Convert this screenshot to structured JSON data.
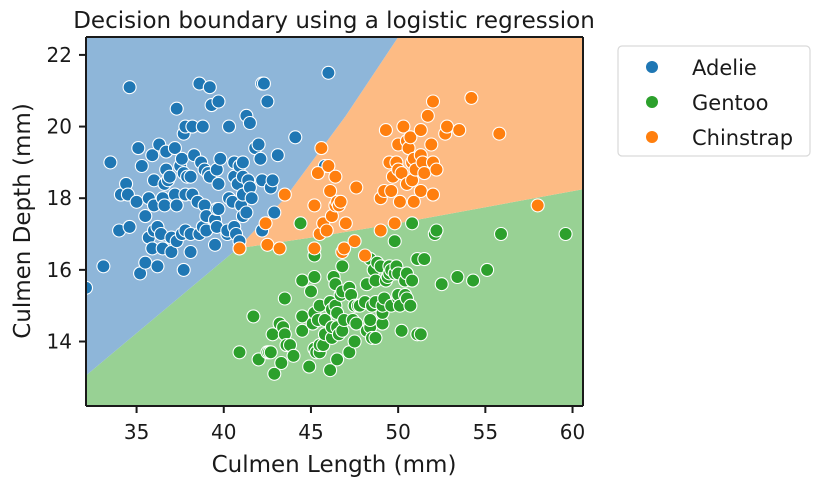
{
  "chart_data": {
    "type": "scatter",
    "title": "Decision boundary using a logistic regression",
    "xlabel": "Culmen Length (mm)",
    "ylabel": "Culmen Depth (mm)",
    "xlim": [
      32.1,
      60.6
    ],
    "ylim": [
      12.2,
      22.5
    ],
    "xticks": [
      35,
      40,
      45,
      50,
      55,
      60
    ],
    "yticks": [
      14,
      16,
      18,
      20,
      22
    ],
    "legend_position": "outside-right",
    "grid": false,
    "background_regions": [
      {
        "class": "Adelie",
        "color": "#8eb6d9"
      },
      {
        "class": "Chinstrap",
        "color": "#fdbb84"
      },
      {
        "class": "Gentoo",
        "color": "#98d194"
      }
    ],
    "boundaries": {
      "adelie_line": [
        [
          32.1,
          13.05
        ],
        [
          40.8,
          16.6
        ],
        [
          43.5,
          18.0
        ],
        [
          47.0,
          20.3
        ],
        [
          50.0,
          22.5
        ]
      ],
      "gentoo_line": [
        [
          40.8,
          16.6
        ],
        [
          45.0,
          16.9
        ],
        [
          50.0,
          17.3
        ],
        [
          55.0,
          17.75
        ],
        [
          60.6,
          18.25
        ]
      ]
    },
    "series": [
      {
        "name": "Adelie",
        "color": "#1f77b4",
        "points": [
          [
            32.1,
            15.5
          ],
          [
            33.1,
            16.1
          ],
          [
            33.5,
            19.0
          ],
          [
            34.0,
            17.1
          ],
          [
            34.1,
            18.1
          ],
          [
            34.4,
            18.4
          ],
          [
            34.5,
            18.1
          ],
          [
            34.6,
            21.1
          ],
          [
            34.6,
            17.2
          ],
          [
            35.0,
            17.9
          ],
          [
            35.1,
            19.4
          ],
          [
            35.2,
            15.9
          ],
          [
            35.3,
            18.9
          ],
          [
            35.5,
            16.2
          ],
          [
            35.5,
            17.5
          ],
          [
            35.7,
            16.9
          ],
          [
            35.7,
            18.0
          ],
          [
            35.9,
            16.6
          ],
          [
            35.9,
            19.2
          ],
          [
            36.0,
            17.1
          ],
          [
            36.0,
            17.8
          ],
          [
            36.0,
            18.5
          ],
          [
            36.2,
            16.1
          ],
          [
            36.2,
            17.2
          ],
          [
            36.3,
            19.5
          ],
          [
            36.4,
            17.0
          ],
          [
            36.5,
            16.6
          ],
          [
            36.5,
            18.0
          ],
          [
            36.6,
            17.8
          ],
          [
            36.6,
            18.4
          ],
          [
            36.7,
            18.8
          ],
          [
            36.7,
            19.3
          ],
          [
            36.8,
            18.5
          ],
          [
            36.9,
            18.6
          ],
          [
            37.0,
            16.5
          ],
          [
            37.0,
            16.9
          ],
          [
            37.2,
            18.1
          ],
          [
            37.2,
            19.4
          ],
          [
            37.3,
            16.8
          ],
          [
            37.3,
            17.8
          ],
          [
            37.3,
            20.5
          ],
          [
            37.5,
            18.9
          ],
          [
            37.6,
            17.0
          ],
          [
            37.6,
            19.1
          ],
          [
            37.7,
            16.0
          ],
          [
            37.7,
            18.7
          ],
          [
            37.7,
            19.8
          ],
          [
            37.8,
            17.1
          ],
          [
            37.8,
            18.1
          ],
          [
            37.8,
            20.0
          ],
          [
            37.9,
            18.6
          ],
          [
            38.1,
            16.5
          ],
          [
            38.1,
            17.0
          ],
          [
            38.1,
            18.6
          ],
          [
            38.2,
            18.1
          ],
          [
            38.2,
            20.0
          ],
          [
            38.3,
            19.2
          ],
          [
            38.5,
            17.9
          ],
          [
            38.6,
            17.0
          ],
          [
            38.6,
            21.2
          ],
          [
            38.7,
            19.0
          ],
          [
            38.8,
            17.2
          ],
          [
            38.8,
            20.0
          ],
          [
            38.9,
            17.8
          ],
          [
            38.9,
            18.8
          ],
          [
            39.0,
            17.1
          ],
          [
            39.0,
            17.5
          ],
          [
            39.1,
            18.7
          ],
          [
            39.2,
            18.6
          ],
          [
            39.2,
            21.1
          ],
          [
            39.3,
            20.6
          ],
          [
            39.5,
            16.7
          ],
          [
            39.5,
            17.4
          ],
          [
            39.6,
            17.2
          ],
          [
            39.6,
            17.7
          ],
          [
            39.6,
            18.8
          ],
          [
            39.7,
            17.7
          ],
          [
            39.7,
            18.4
          ],
          [
            39.8,
            19.1
          ],
          [
            39.7,
            20.7
          ],
          [
            40.2,
            17.0
          ],
          [
            40.2,
            17.1
          ],
          [
            40.3,
            18.0
          ],
          [
            40.3,
            20.0
          ],
          [
            40.5,
            17.9
          ],
          [
            40.6,
            17.2
          ],
          [
            40.6,
            18.6
          ],
          [
            40.6,
            19.0
          ],
          [
            40.7,
            17.0
          ],
          [
            40.8,
            18.4
          ],
          [
            40.9,
            16.6
          ],
          [
            40.9,
            16.8
          ],
          [
            40.9,
            18.9
          ],
          [
            41.0,
            17.8
          ],
          [
            41.1,
            17.5
          ],
          [
            41.1,
            18.1
          ],
          [
            41.1,
            18.6
          ],
          [
            41.1,
            19.0
          ],
          [
            41.3,
            17.6
          ],
          [
            41.3,
            20.3
          ],
          [
            41.4,
            18.5
          ],
          [
            41.5,
            18.3
          ],
          [
            41.5,
            20.1
          ],
          [
            41.6,
            18.0
          ],
          [
            41.8,
            19.4
          ],
          [
            42.0,
            19.5
          ],
          [
            42.1,
            19.1
          ],
          [
            42.2,
            17.1
          ],
          [
            42.2,
            18.5
          ],
          [
            42.2,
            21.2
          ],
          [
            42.3,
            21.2
          ],
          [
            42.5,
            20.7
          ],
          [
            42.7,
            18.3
          ],
          [
            42.8,
            18.5
          ],
          [
            42.9,
            17.6
          ],
          [
            43.1,
            19.2
          ],
          [
            44.1,
            19.7
          ],
          [
            45.8,
            18.9
          ],
          [
            46.0,
            21.5
          ]
        ]
      },
      {
        "name": "Gentoo",
        "color": "#2ca02c",
        "points": [
          [
            40.9,
            13.7
          ],
          [
            41.7,
            14.7
          ],
          [
            42.0,
            13.5
          ],
          [
            42.5,
            13.7
          ],
          [
            42.6,
            13.7
          ],
          [
            42.7,
            13.7
          ],
          [
            42.8,
            14.2
          ],
          [
            42.9,
            13.1
          ],
          [
            43.2,
            14.5
          ],
          [
            43.3,
            13.4
          ],
          [
            43.4,
            14.4
          ],
          [
            43.5,
            14.2
          ],
          [
            43.5,
            15.2
          ],
          [
            43.6,
            13.9
          ],
          [
            43.8,
            13.9
          ],
          [
            44.0,
            13.6
          ],
          [
            44.4,
            17.3
          ],
          [
            44.5,
            14.3
          ],
          [
            44.5,
            14.7
          ],
          [
            44.5,
            15.7
          ],
          [
            44.9,
            13.3
          ],
          [
            45.0,
            15.4
          ],
          [
            45.1,
            14.5
          ],
          [
            45.2,
            13.8
          ],
          [
            45.2,
            14.8
          ],
          [
            45.2,
            15.8
          ],
          [
            45.2,
            16.4
          ],
          [
            45.3,
            13.7
          ],
          [
            45.4,
            14.6
          ],
          [
            45.5,
            13.7
          ],
          [
            45.5,
            13.9
          ],
          [
            45.5,
            15.0
          ],
          [
            45.7,
            13.9
          ],
          [
            45.8,
            14.2
          ],
          [
            45.8,
            14.6
          ],
          [
            46.1,
            13.2
          ],
          [
            46.1,
            15.1
          ],
          [
            46.2,
            14.1
          ],
          [
            46.2,
            14.4
          ],
          [
            46.2,
            14.9
          ],
          [
            46.3,
            15.8
          ],
          [
            46.4,
            15.0
          ],
          [
            46.4,
            15.6
          ],
          [
            46.5,
            13.5
          ],
          [
            46.5,
            14.4
          ],
          [
            46.5,
            14.8
          ],
          [
            46.6,
            14.2
          ],
          [
            46.7,
            15.3
          ],
          [
            46.8,
            14.3
          ],
          [
            46.8,
            15.4
          ],
          [
            46.8,
            16.1
          ],
          [
            46.9,
            14.6
          ],
          [
            47.2,
            13.7
          ],
          [
            47.2,
            15.5
          ],
          [
            47.3,
            15.3
          ],
          [
            47.4,
            14.6
          ],
          [
            47.5,
            14.0
          ],
          [
            47.5,
            15.0
          ],
          [
            47.6,
            14.5
          ],
          [
            47.7,
            15.0
          ],
          [
            47.8,
            15.0
          ],
          [
            48.1,
            15.1
          ],
          [
            48.2,
            14.3
          ],
          [
            48.2,
            15.6
          ],
          [
            48.4,
            14.4
          ],
          [
            48.4,
            14.6
          ],
          [
            48.4,
            16.3
          ],
          [
            48.5,
            14.1
          ],
          [
            48.5,
            15.0
          ],
          [
            48.6,
            16.0
          ],
          [
            48.7,
            14.1
          ],
          [
            48.7,
            15.1
          ],
          [
            48.7,
            15.7
          ],
          [
            48.8,
            16.2
          ],
          [
            49.0,
            16.1
          ],
          [
            49.1,
            14.5
          ],
          [
            49.1,
            14.8
          ],
          [
            49.1,
            15.0
          ],
          [
            49.2,
            15.2
          ],
          [
            49.3,
            15.7
          ],
          [
            49.4,
            15.8
          ],
          [
            49.5,
            15.9
          ],
          [
            49.5,
            16.1
          ],
          [
            49.6,
            15.0
          ],
          [
            49.6,
            16.0
          ],
          [
            49.8,
            15.9
          ],
          [
            49.8,
            16.8
          ],
          [
            49.9,
            16.1
          ],
          [
            50.0,
            15.2
          ],
          [
            50.0,
            15.3
          ],
          [
            50.0,
            15.9
          ],
          [
            50.1,
            15.0
          ],
          [
            50.2,
            14.3
          ],
          [
            50.4,
            15.3
          ],
          [
            50.4,
            15.7
          ],
          [
            50.5,
            15.2
          ],
          [
            50.5,
            15.9
          ],
          [
            50.7,
            15.0
          ],
          [
            50.8,
            15.7
          ],
          [
            50.8,
            17.3
          ],
          [
            51.1,
            14.2
          ],
          [
            51.1,
            16.3
          ],
          [
            51.3,
            14.2
          ],
          [
            51.5,
            16.3
          ],
          [
            52.1,
            17.0
          ],
          [
            52.2,
            17.1
          ],
          [
            52.5,
            15.6
          ],
          [
            53.4,
            15.8
          ],
          [
            54.3,
            15.7
          ],
          [
            55.1,
            16.0
          ],
          [
            55.9,
            17.0
          ],
          [
            59.6,
            17.0
          ]
        ]
      },
      {
        "name": "Chinstrap",
        "color": "#ff7f0e",
        "points": [
          [
            40.9,
            16.6
          ],
          [
            42.4,
            17.3
          ],
          [
            42.5,
            16.7
          ],
          [
            43.2,
            16.6
          ],
          [
            43.5,
            18.1
          ],
          [
            45.2,
            16.6
          ],
          [
            45.2,
            17.8
          ],
          [
            45.4,
            18.7
          ],
          [
            45.5,
            17.0
          ],
          [
            45.6,
            19.4
          ],
          [
            45.7,
            17.3
          ],
          [
            45.9,
            17.1
          ],
          [
            46.0,
            18.9
          ],
          [
            46.1,
            18.2
          ],
          [
            46.2,
            17.5
          ],
          [
            46.4,
            17.8
          ],
          [
            46.4,
            18.6
          ],
          [
            46.5,
            17.9
          ],
          [
            46.6,
            17.8
          ],
          [
            46.7,
            17.9
          ],
          [
            46.8,
            16.5
          ],
          [
            46.9,
            16.6
          ],
          [
            47.0,
            17.3
          ],
          [
            47.5,
            16.8
          ],
          [
            47.6,
            18.3
          ],
          [
            48.1,
            16.4
          ],
          [
            49.0,
            17.1
          ],
          [
            49.0,
            18.0
          ],
          [
            49.2,
            18.2
          ],
          [
            49.3,
            19.9
          ],
          [
            49.5,
            19.0
          ],
          [
            49.6,
            18.2
          ],
          [
            49.7,
            18.6
          ],
          [
            49.8,
            17.3
          ],
          [
            49.9,
            19.0
          ],
          [
            50.0,
            18.8
          ],
          [
            50.0,
            19.5
          ],
          [
            50.1,
            17.9
          ],
          [
            50.2,
            18.7
          ],
          [
            50.3,
            20.0
          ],
          [
            50.5,
            18.4
          ],
          [
            50.5,
            19.6
          ],
          [
            50.6,
            19.4
          ],
          [
            50.7,
            19.7
          ],
          [
            50.8,
            18.5
          ],
          [
            50.8,
            19.0
          ],
          [
            50.9,
            17.9
          ],
          [
            50.9,
            19.1
          ],
          [
            51.0,
            18.8
          ],
          [
            51.3,
            18.2
          ],
          [
            51.3,
            19.2
          ],
          [
            51.3,
            19.9
          ],
          [
            51.4,
            19.0
          ],
          [
            51.5,
            18.7
          ],
          [
            51.7,
            20.3
          ],
          [
            51.9,
            19.5
          ],
          [
            52.0,
            18.1
          ],
          [
            52.0,
            19.0
          ],
          [
            52.0,
            20.7
          ],
          [
            52.2,
            18.8
          ],
          [
            52.7,
            19.8
          ],
          [
            52.8,
            20.0
          ],
          [
            53.5,
            19.9
          ],
          [
            54.2,
            20.8
          ],
          [
            55.8,
            19.8
          ],
          [
            58.0,
            17.8
          ]
        ]
      }
    ]
  },
  "legend": {
    "items": [
      {
        "label": "Adelie",
        "color": "#1f77b4"
      },
      {
        "label": "Gentoo",
        "color": "#2ca02c"
      },
      {
        "label": "Chinstrap",
        "color": "#ff7f0e"
      }
    ]
  }
}
